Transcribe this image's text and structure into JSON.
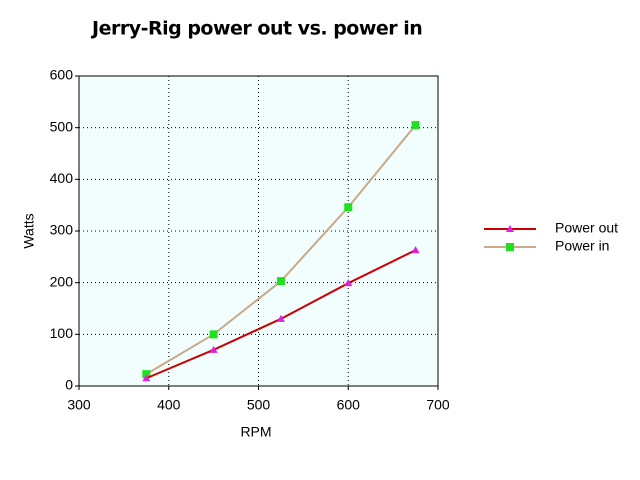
{
  "chart_data": {
    "type": "line",
    "title": "Jerry-Rig  power out  vs. power in",
    "x_label": "RPM",
    "y_label": "Watts",
    "x": [
      375,
      450,
      525,
      600,
      675
    ],
    "series": [
      {
        "name": "Power out",
        "color": "#cc0000",
        "marker_color": "#e020e0",
        "marker": "triangle",
        "values": [
          15,
          70,
          130,
          199,
          263
        ]
      },
      {
        "name": "Power in",
        "color": "#c8aa88",
        "marker_color": "#20e020",
        "marker": "square",
        "values": [
          23,
          100,
          203,
          346,
          505
        ]
      }
    ],
    "xlim": [
      300,
      700
    ],
    "xticks": [
      300,
      400,
      500,
      600,
      700
    ],
    "ylim": [
      0,
      600
    ],
    "yticks": [
      0,
      100,
      200,
      300,
      400,
      500,
      600
    ],
    "grid": true,
    "legend": "right"
  }
}
